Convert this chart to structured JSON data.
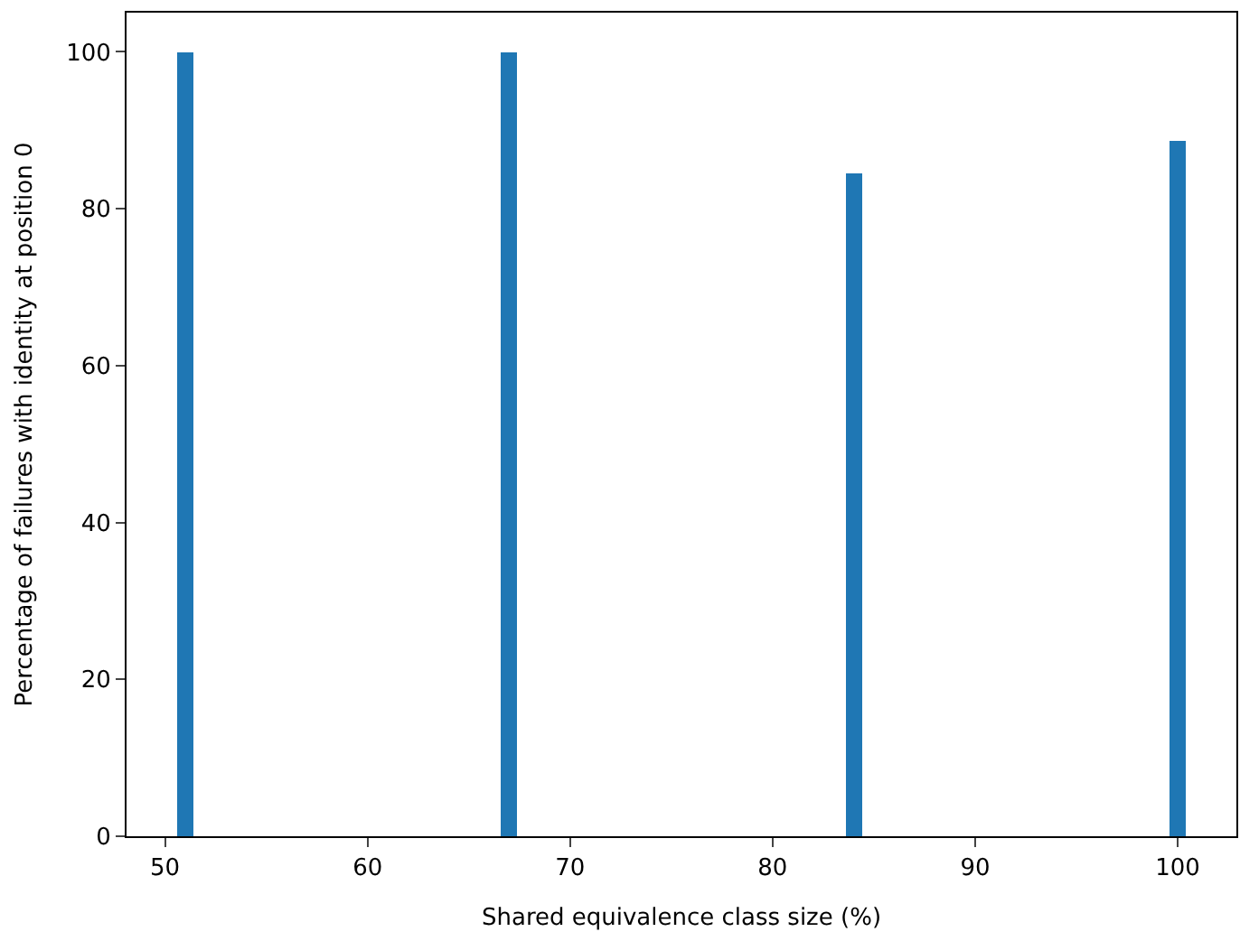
{
  "chart_data": {
    "type": "bar",
    "xlabel": "Shared equivalence class size (%)",
    "ylabel": "Percentage of failures with identity at position 0",
    "x": [
      51,
      67,
      84,
      100
    ],
    "values": [
      100,
      100,
      84.6,
      88.7
    ],
    "color": "#1f77b4",
    "xlim": [
      48.1,
      102.9
    ],
    "xticks": [
      50,
      60,
      70,
      80,
      90,
      100
    ],
    "ylim": [
      0,
      105
    ],
    "yticks": [
      0,
      20,
      40,
      60,
      80,
      100
    ]
  }
}
